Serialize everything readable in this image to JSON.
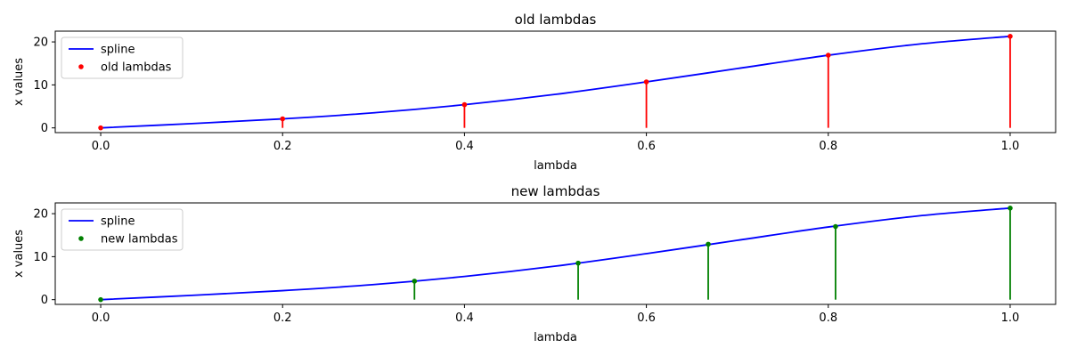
{
  "colors": {
    "spline": "#0000ff",
    "old": "#ff0000",
    "new": "#008000"
  },
  "chart_data": [
    {
      "type": "line",
      "title": "old lambdas",
      "xlabel": "lambda",
      "ylabel": "x values",
      "xlim": [
        -0.05,
        1.05
      ],
      "ylim": [
        -1.1,
        22.5
      ],
      "xticks": [
        0.0,
        0.2,
        0.4,
        0.6,
        0.8,
        1.0
      ],
      "xtick_labels": [
        "0.0",
        "0.2",
        "0.4",
        "0.6",
        "0.8",
        "1.0"
      ],
      "yticks": [
        0,
        10,
        20
      ],
      "ytick_labels": [
        "0",
        "10",
        "20"
      ],
      "legend_position": "upper-left",
      "series": [
        {
          "name": "spline",
          "kind": "line",
          "color": "#0000ff",
          "x": [
            0.0,
            0.1,
            0.2,
            0.3,
            0.4,
            0.5,
            0.6,
            0.7,
            0.8,
            0.9,
            1.0
          ],
          "y": [
            0.0,
            1.0,
            2.1,
            3.5,
            5.4,
            7.8,
            10.7,
            13.8,
            16.9,
            19.5,
            21.3
          ]
        },
        {
          "name": "old lambdas",
          "kind": "stem",
          "color": "#ff0000",
          "x": [
            0.0,
            0.2,
            0.4,
            0.6,
            0.8,
            1.0
          ],
          "y": [
            0.0,
            2.1,
            5.4,
            10.7,
            16.9,
            21.3
          ]
        }
      ]
    },
    {
      "type": "line",
      "title": "new lambdas",
      "xlabel": "lambda",
      "ylabel": "x values",
      "xlim": [
        -0.05,
        1.05
      ],
      "ylim": [
        -1.1,
        22.5
      ],
      "xticks": [
        0.0,
        0.2,
        0.4,
        0.6,
        0.8,
        1.0
      ],
      "xtick_labels": [
        "0.0",
        "0.2",
        "0.4",
        "0.6",
        "0.8",
        "1.0"
      ],
      "yticks": [
        0,
        10,
        20
      ],
      "ytick_labels": [
        "0",
        "10",
        "20"
      ],
      "legend_position": "upper-left",
      "series": [
        {
          "name": "spline",
          "kind": "line",
          "color": "#0000ff",
          "x": [
            0.0,
            0.1,
            0.2,
            0.3,
            0.4,
            0.5,
            0.6,
            0.7,
            0.8,
            0.9,
            1.0
          ],
          "y": [
            0.0,
            1.0,
            2.1,
            3.5,
            5.4,
            7.8,
            10.7,
            13.8,
            16.9,
            19.5,
            21.3
          ]
        },
        {
          "name": "new lambdas",
          "kind": "stem",
          "color": "#008000",
          "x": [
            0.0,
            0.345,
            0.525,
            0.668,
            0.808,
            1.0
          ],
          "y": [
            0.0,
            4.3,
            8.5,
            12.9,
            17.0,
            21.3
          ]
        }
      ]
    }
  ]
}
